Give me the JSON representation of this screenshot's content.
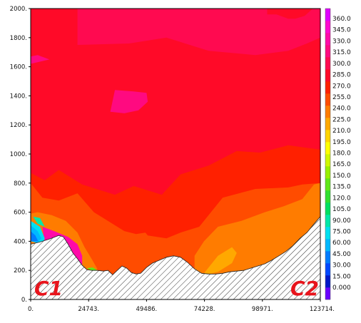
{
  "chart_data": {
    "type": "heatmap",
    "title": "",
    "xlabel": "",
    "ylabel": "",
    "xlim": [
      0,
      123714
    ],
    "ylim": [
      0,
      2000
    ],
    "x_ticks": [
      "0.",
      "24743.",
      "49486.",
      "74228.",
      "98971.",
      "123714."
    ],
    "y_ticks": [
      "0.",
      "200.",
      "400.",
      "600.",
      "800.",
      "1000.",
      "1200.",
      "1400.",
      "1600.",
      "1800.",
      "2000."
    ],
    "colorbar": {
      "range": [
        0,
        360
      ],
      "step": 15,
      "tick_labels": [
        "0.000",
        "15.00",
        "30.00",
        "45.00",
        "60.00",
        "75.00",
        "90.00",
        "105.0",
        "120.0",
        "135.0",
        "150.0",
        "165.0",
        "180.0",
        "195.0",
        "210.0",
        "225.0",
        "240.0",
        "255.0",
        "270.0",
        "285.0",
        "300.0",
        "315.0",
        "330.0",
        "345.0",
        "360.0"
      ],
      "colors": [
        "#6a00ff",
        "#0018c8",
        "#0048ff",
        "#007cff",
        "#00b8ff",
        "#00e0f0",
        "#00e8a8",
        "#00e060",
        "#30e030",
        "#60e818",
        "#98f000",
        "#d0f800",
        "#ffff00",
        "#ffd400",
        "#ffa800",
        "#ff7c00",
        "#ff4c00",
        "#ff2000",
        "#ff0a28",
        "#ff0a50",
        "#ff0a80",
        "#ff0aa8",
        "#ff0ad0",
        "#e000ff"
      ]
    },
    "terrain": {
      "x": [
        0,
        4000,
        8000,
        12000,
        14000,
        16000,
        18000,
        20000,
        22000,
        24000,
        26000,
        28500,
        31000,
        33000,
        35000,
        37000,
        39000,
        41000,
        43000,
        45000,
        47000,
        49500,
        52000,
        55000,
        58000,
        61000,
        64000,
        67000,
        70000,
        73000,
        76000,
        79000,
        82000,
        85000,
        88000,
        91000,
        94000,
        97000,
        100000,
        103000,
        106000,
        109000,
        112000,
        115000,
        118000,
        120500,
        123714
      ],
      "height": [
        380,
        395,
        415,
        440,
        430,
        380,
        320,
        280,
        235,
        205,
        200,
        200,
        195,
        200,
        170,
        200,
        230,
        215,
        185,
        175,
        180,
        220,
        250,
        270,
        290,
        300,
        290,
        255,
        210,
        180,
        175,
        175,
        180,
        190,
        195,
        200,
        215,
        230,
        245,
        270,
        300,
        330,
        370,
        420,
        460,
        510,
        570
      ]
    },
    "regions": [
      {
        "value": 262,
        "x": [
          0,
          123714,
          123714,
          0
        ],
        "y": [
          0,
          0,
          2000,
          2000
        ]
      },
      {
        "value": 277,
        "x": [
          0,
          6000,
          12000,
          22000,
          36000,
          44000,
          56000,
          64000,
          76000,
          88000,
          98000,
          110000,
          123714,
          123714,
          0
        ],
        "y": [
          870,
          820,
          890,
          790,
          720,
          780,
          720,
          860,
          920,
          1020,
          1010,
          1060,
          1030,
          2000,
          2000
        ]
      },
      {
        "value": 292,
        "x": [
          20000,
          42000,
          58000,
          76000,
          96000,
          110000,
          118000,
          123714,
          123714,
          120500,
          117000,
          113000,
          110000,
          105000,
          100000,
          96000,
          93000,
          93000,
          97000,
          101000,
          103000,
          101000,
          101000,
          106000,
          111000,
          115000,
          120000,
          123714,
          123714,
          100000,
          80000,
          63000,
          50000,
          38000,
          20000
        ],
        "y": [
          1750,
          1760,
          1800,
          1710,
          1680,
          1710,
          1760,
          1800,
          2000,
          2000,
          1950,
          1930,
          1930,
          1960,
          1960,
          1930,
          1890,
          1850,
          1840,
          1860,
          1890,
          1950,
          2000,
          2000,
          2000,
          2000,
          2000,
          2000,
          2000,
          2000,
          2000,
          2000,
          2000,
          2000,
          2000
        ]
      },
      {
        "value": 307,
        "x": [
          36000,
          44000,
          49500,
          50000,
          46000,
          40000,
          34000
        ],
        "y": [
          1440,
          1430,
          1420,
          1360,
          1300,
          1280,
          1290
        ]
      },
      {
        "value": 307,
        "x": [
          0,
          3000,
          8000,
          0
        ],
        "y": [
          1670,
          1680,
          1650,
          1620
        ]
      },
      {
        "value": 248,
        "x": [
          0,
          5000,
          12000,
          20000,
          27000,
          34000,
          40000,
          45000,
          49000,
          50000,
          58000,
          64000,
          72000,
          82000,
          96000,
          110000,
          116000,
          123714,
          123714,
          0
        ],
        "y": [
          800,
          700,
          680,
          730,
          600,
          530,
          470,
          450,
          460,
          440,
          420,
          460,
          500,
          700,
          760,
          770,
          790,
          800,
          0,
          0
        ]
      },
      {
        "value": 248,
        "x": [
          10000,
          16000,
          20000,
          22000,
          20000,
          14000
        ],
        "y": [
          610,
          630,
          700,
          660,
          590,
          590
        ]
      },
      {
        "value": 232,
        "x": [
          70000,
          74000,
          80000,
          90000,
          100000,
          108000,
          116000,
          121000,
          123714,
          123714,
          70000
        ],
        "y": [
          300,
          400,
          500,
          540,
          600,
          640,
          690,
          790,
          800,
          0,
          0
        ]
      },
      {
        "value": 217,
        "x": [
          74000,
          80000,
          86000,
          88000,
          86000,
          80000,
          75000
        ],
        "y": [
          180,
          300,
          360,
          320,
          250,
          190,
          170
        ]
      },
      {
        "value": 232,
        "x": [
          0,
          3000,
          9000,
          15000,
          20000,
          23000,
          26000,
          28500,
          26000,
          20000,
          12000,
          6000,
          0
        ],
        "y": [
          590,
          600,
          580,
          540,
          460,
          360,
          280,
          210,
          0,
          0,
          0,
          0,
          0
        ]
      },
      {
        "value": 322,
        "x": [
          5000,
          10000,
          16000,
          20000,
          22000,
          22000,
          18000,
          12000,
          6000
        ],
        "y": [
          500,
          470,
          430,
          380,
          300,
          240,
          220,
          280,
          380
        ]
      },
      {
        "value": 337,
        "x": [
          8000,
          13000,
          17000,
          18000,
          16000,
          12000
        ],
        "y": [
          430,
          410,
          370,
          300,
          260,
          300
        ]
      },
      {
        "value": 97,
        "x": [
          1000,
          4000,
          6000,
          3000
        ],
        "y": [
          570,
          560,
          500,
          520
        ]
      },
      {
        "value": 82,
        "x": [
          0,
          4000,
          6000,
          5000,
          0
        ],
        "y": [
          540,
          500,
          420,
          380,
          400
        ]
      },
      {
        "value": 67,
        "x": [
          0,
          3000,
          4500,
          3000,
          0
        ],
        "y": [
          510,
          470,
          420,
          390,
          400
        ]
      },
      {
        "value": 52,
        "x": [
          0,
          2000,
          3200,
          0
        ],
        "y": [
          470,
          440,
          400,
          400
        ]
      },
      {
        "value": 142,
        "x": [
          24000,
          26500,
          28500,
          26500
        ],
        "y": [
          215,
          220,
          200,
          195
        ]
      },
      {
        "value": 82,
        "x": [
          25500,
          27500,
          28500,
          26500
        ],
        "y": [
          200,
          200,
          190,
          185
        ]
      }
    ],
    "annotations": [
      {
        "text": "C1",
        "position": "bottom-left"
      },
      {
        "text": "C2",
        "position": "bottom-right"
      }
    ]
  }
}
